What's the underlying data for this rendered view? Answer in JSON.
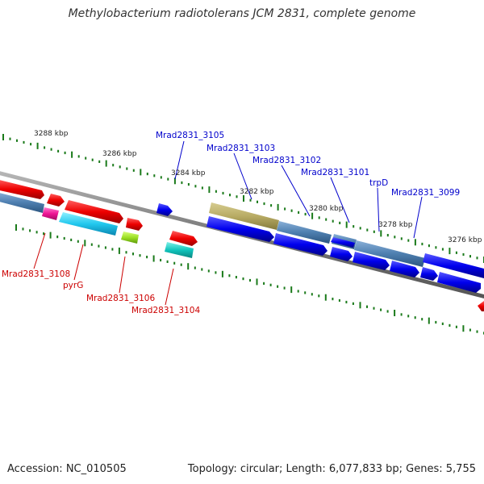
{
  "title": "Methylobacterium radiotolerans JCM 2831, complete genome",
  "footer": {
    "accession": "Accession: NC_010505",
    "summary": "Topology: circular; Length: 6,077,833 bp; Genes: 5,755"
  },
  "ruler_labels": [
    "3288 kbp",
    "3286 kbp",
    "3284 kbp",
    "3282 kbp",
    "3280 kbp",
    "3278 kbp",
    "3276 kbp"
  ],
  "gene_labels_upper": [
    "Mrad2831_3105",
    "Mrad2831_3103",
    "Mrad2831_3102",
    "Mrad2831_3101",
    "trpD",
    "Mrad2831_3099"
  ],
  "gene_labels_lower": [
    "Mrad2831_3108",
    "pyrG",
    "Mrad2831_3106",
    "Mrad2831_3104"
  ],
  "colors": {
    "forward_gene": "#0000ee",
    "reverse_gene": "#ee0000",
    "upper_label": "#0000cc",
    "lower_label": "#cc0000",
    "backbone": "#888888",
    "tick": "#1a7a1a"
  }
}
